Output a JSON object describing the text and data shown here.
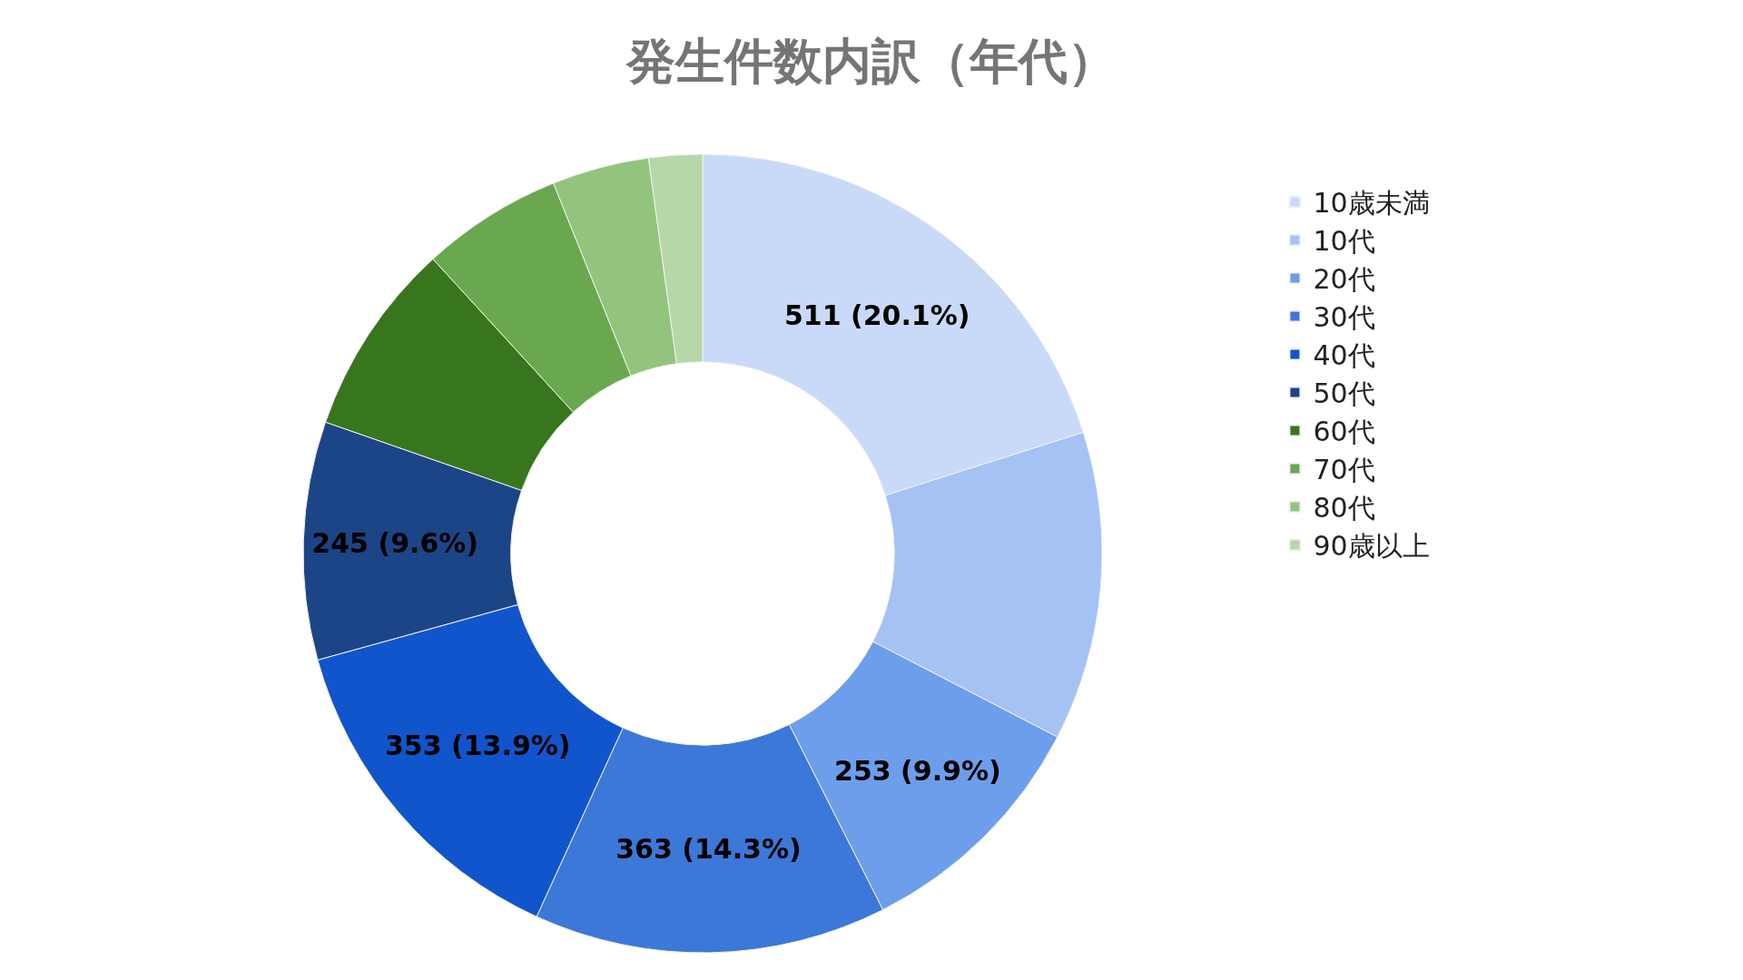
{
  "chart_data": {
    "type": "donut",
    "title": "発生件数内訳（年代）",
    "categories": [
      "10歳未満",
      "10代",
      "20代",
      "30代",
      "40代",
      "50代",
      "60代",
      "70代",
      "80代",
      "90歳以上"
    ],
    "values": [
      511,
      318,
      253,
      363,
      353,
      245,
      200,
      145,
      100,
      55
    ],
    "colors": [
      "#c9daf8",
      "#a4c2f4",
      "#6d9eeb",
      "#3c78d8",
      "#1155cc",
      "#1c4587",
      "#38761d",
      "#6aa84f",
      "#93c47d",
      "#b6d7a8"
    ],
    "value_labels": [
      "511 (20.1%)",
      null,
      "253 (9.9%)",
      "363 (14.3%)",
      "353 (13.9%)",
      "245 (9.6%)",
      null,
      null,
      null,
      null
    ],
    "legend": "right"
  }
}
